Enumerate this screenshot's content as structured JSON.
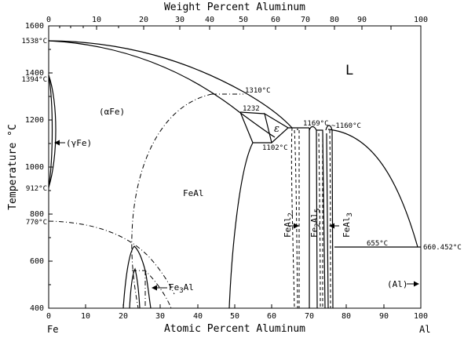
{
  "top_axis": {
    "title": "Weight Percent Aluminum",
    "ticks": [
      "0",
      "10",
      "20",
      "30",
      "40",
      "50",
      "60",
      "70",
      "80",
      "90",
      "100"
    ]
  },
  "bottom_axis": {
    "title": "Atomic Percent Aluminum",
    "ticks": [
      "0",
      "10",
      "20",
      "30",
      "40",
      "50",
      "60",
      "70",
      "80",
      "90",
      "100"
    ],
    "left_end": "Fe",
    "right_end": "Al"
  },
  "left_axis": {
    "title": "Temperature °C",
    "ticks": [
      "400",
      "600",
      "800",
      "1000",
      "1200",
      "1400",
      "1600"
    ]
  },
  "temperature_annotations": {
    "fe_melting": "1538°C",
    "fe_gamma_upper": "1394°C",
    "fe_gamma_lower": "912°C",
    "curie": "770°C",
    "max_1310": "1310°C",
    "t_1232": "1232",
    "t_1169": "1169°C",
    "t_1160": "~1160°C",
    "t_1102": "1102°C",
    "eutectic_655": "655°C",
    "al_melting": "660.452°C"
  },
  "phases": {
    "liquid": "L",
    "alpha_fe": "(αFe)",
    "gamma_fe": "(γFe)",
    "feal": "FeAl",
    "epsilon": "ε",
    "fe3al": "Fe",
    "fe3al_sub": "3",
    "fe3al_rest": "Al",
    "feal2": "FeAl",
    "feal2_sub": "2",
    "fe2al5_a": "Fe",
    "fe2al5_sub_a": "2",
    "fe2al5_b": "Al",
    "fe2al5_sub_b": "5",
    "feal3": "FeAl",
    "feal3_sub": "3",
    "al": "(Al)"
  }
}
